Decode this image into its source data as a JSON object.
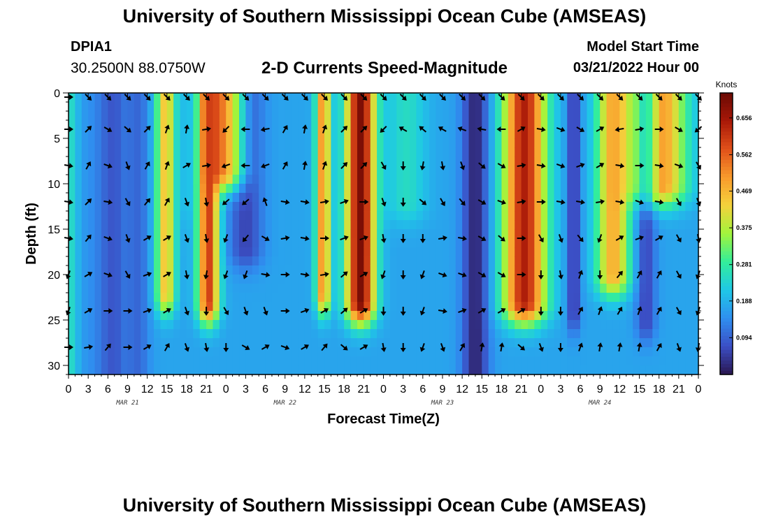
{
  "header": {
    "title": "University of Southern Mississippi Ocean Cube (AMSEAS)",
    "station": "DPIA1",
    "coords": "30.2500N  88.0750W",
    "subtitle": "2-D Currents Speed-Magnitude",
    "model_start_label": "Model Start Time",
    "model_start_value": "03/21/2022 Hour 00"
  },
  "footer": {
    "title": "University of Southern Mississippi Ocean Cube (AMSEAS)"
  },
  "chart_data": {
    "type": "heatmap",
    "title": "2-D Currents Speed-Magnitude",
    "xlabel": "Forecast Time(Z)",
    "ylabel": "Depth (ft)",
    "x_ticks": [
      "0",
      "3",
      "6",
      "9",
      "12",
      "15",
      "18",
      "21",
      "0",
      "3",
      "6",
      "9",
      "12",
      "15",
      "18",
      "21",
      "0",
      "3",
      "6",
      "9",
      "12",
      "15",
      "18",
      "21",
      "0",
      "3",
      "6",
      "9",
      "12",
      "15",
      "18",
      "21",
      "0"
    ],
    "x_range_hours": [
      0,
      96
    ],
    "date_labels": [
      {
        "label": "MAR 21",
        "hour": 9
      },
      {
        "label": "MAR 22",
        "hour": 33
      },
      {
        "label": "MAR 23",
        "hour": 57
      },
      {
        "label": "MAR 24",
        "hour": 81
      }
    ],
    "y_ticks": [
      0,
      5,
      10,
      15,
      20,
      25,
      30
    ],
    "y_range_ft": [
      0,
      31
    ],
    "colorbar": {
      "label": "Knots",
      "ticks": [
        "0.656",
        "0.562",
        "0.469",
        "0.375",
        "0.281",
        "0.188",
        "0.094"
      ],
      "range": [
        0,
        0.72
      ],
      "colors": [
        "#2a1650",
        "#3b4fc5",
        "#2f8ff0",
        "#1fc8e6",
        "#33ee9a",
        "#a2f43c",
        "#f4d23c",
        "#f99b2c",
        "#e0501a",
        "#a81808",
        "#6a0a04"
      ]
    },
    "bands": [
      {
        "center_hour": 0,
        "width_hours": 1.4,
        "speed": 0.26,
        "bottom_ft": 31
      },
      {
        "center_hour": 3.5,
        "width_hours": 2.2,
        "speed": 0.15,
        "bottom_ft": 31
      },
      {
        "center_hour": 6.5,
        "width_hours": 2.0,
        "speed": 0.07,
        "bottom_ft": 31
      },
      {
        "center_hour": 10.5,
        "width_hours": 1.8,
        "speed": 0.1,
        "bottom_ft": 31
      },
      {
        "center_hour": 14.8,
        "width_hours": 1.5,
        "speed": 0.45,
        "bottom_ft": 22
      },
      {
        "center_hour": 18.0,
        "width_hours": 0.8,
        "speed": 0.2,
        "bottom_ft": 12
      },
      {
        "center_hour": 21.3,
        "width_hours": 1.6,
        "speed": 0.6,
        "bottom_ft": 23
      },
      {
        "center_hour": 24.5,
        "width_hours": 2.3,
        "speed": 0.62,
        "bottom_ft": 8
      },
      {
        "center_hour": 27.0,
        "width_hours": 2.6,
        "speed": 0.06,
        "bottom_ft": 17
      },
      {
        "center_hour": 38.8,
        "width_hours": 1.1,
        "speed": 0.52,
        "bottom_ft": 22
      },
      {
        "center_hour": 41.5,
        "width_hours": 0.8,
        "speed": 0.18,
        "bottom_ft": 11
      },
      {
        "center_hour": 44.5,
        "width_hours": 2.2,
        "speed": 0.7,
        "bottom_ft": 23
      },
      {
        "center_hour": 51.5,
        "width_hours": 3.0,
        "speed": 0.25,
        "bottom_ft": 12
      },
      {
        "center_hour": 62.0,
        "width_hours": 2.0,
        "speed": 0.02,
        "bottom_ft": 31
      },
      {
        "center_hour": 69.5,
        "width_hours": 3.2,
        "speed": 0.64,
        "bottom_ft": 23
      },
      {
        "center_hour": 77.0,
        "width_hours": 1.0,
        "speed": 0.04,
        "bottom_ft": 24
      },
      {
        "center_hour": 83.0,
        "width_hours": 2.5,
        "speed": 0.48,
        "bottom_ft": 20
      },
      {
        "center_hour": 90.0,
        "width_hours": 4.0,
        "speed": 0.52,
        "bottom_ft": 10
      },
      {
        "center_hour": 88.0,
        "width_hours": 1.5,
        "speed": 0.06,
        "bottom_ft": 25
      }
    ],
    "background_speed": 0.17,
    "arrow_depths_ft": [
      0,
      4,
      8,
      12,
      16,
      20,
      24,
      28
    ],
    "arrow_spacing_hours": 3,
    "arrow_directions_deg": {
      "0": [
        90,
        135,
        135,
        135,
        135,
        135,
        135,
        135,
        135,
        135,
        135,
        135,
        135,
        135,
        135,
        135,
        135,
        135,
        135,
        135,
        135,
        135,
        135,
        135,
        135,
        135,
        135,
        135,
        135,
        135,
        135,
        135,
        135
      ],
      "4": [
        90,
        45,
        120,
        130,
        45,
        20,
        10,
        80,
        225,
        270,
        260,
        30,
        10,
        20,
        45,
        45,
        225,
        300,
        310,
        300,
        290,
        280,
        270,
        60,
        100,
        110,
        120,
        60,
        260,
        80,
        90,
        120,
        230
      ],
      "8": [
        100,
        30,
        110,
        160,
        30,
        20,
        60,
        80,
        250,
        270,
        250,
        30,
        10,
        20,
        45,
        45,
        150,
        180,
        190,
        170,
        160,
        130,
        120,
        80,
        100,
        110,
        70,
        60,
        100,
        90,
        100,
        110,
        150
      ],
      "12": [
        100,
        45,
        100,
        150,
        40,
        30,
        160,
        170,
        230,
        230,
        340,
        100,
        100,
        80,
        70,
        90,
        160,
        180,
        130,
        150,
        140,
        120,
        110,
        80,
        90,
        100,
        100,
        80,
        100,
        110,
        100,
        150,
        160
      ],
      "16": [
        100,
        40,
        110,
        160,
        60,
        60,
        160,
        170,
        200,
        220,
        120,
        80,
        100,
        90,
        70,
        70,
        170,
        180,
        180,
        80,
        100,
        120,
        130,
        90,
        150,
        160,
        140,
        200,
        60,
        70,
        60,
        150,
        170
      ],
      "20": [
        200,
        60,
        110,
        150,
        70,
        60,
        170,
        190,
        200,
        200,
        100,
        90,
        100,
        80,
        50,
        60,
        200,
        180,
        200,
        110,
        110,
        120,
        120,
        90,
        180,
        170,
        20,
        180,
        40,
        30,
        30,
        150,
        200
      ],
      "24": [
        200,
        60,
        90,
        90,
        70,
        60,
        160,
        180,
        150,
        160,
        160,
        90,
        70,
        60,
        50,
        60,
        180,
        180,
        200,
        100,
        70,
        60,
        60,
        60,
        180,
        180,
        30,
        20,
        30,
        20,
        30,
        150,
        200
      ],
      "28": [
        90,
        80,
        40,
        90,
        60,
        30,
        160,
        170,
        180,
        120,
        60,
        110,
        60,
        40,
        130,
        60,
        170,
        180,
        200,
        160,
        30,
        10,
        10,
        130,
        160,
        180,
        20,
        10,
        10,
        10,
        30,
        160,
        190
      ]
    }
  }
}
